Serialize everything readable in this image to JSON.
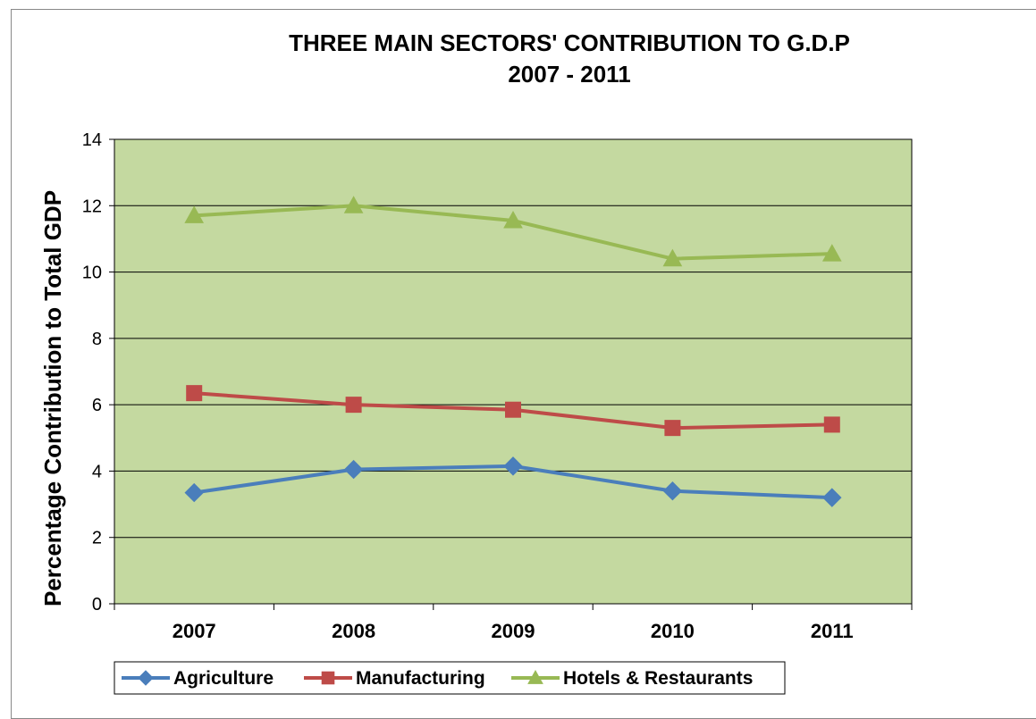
{
  "chart_data": {
    "type": "line",
    "title": "THREE MAIN SECTORS' CONTRIBUTION TO G.D.P",
    "subtitle": "2007 - 2011",
    "xlabel": "",
    "ylabel": "Percentage Contribution to Total GDP",
    "categories": [
      "2007",
      "2008",
      "2009",
      "2010",
      "2011"
    ],
    "ylim": [
      0,
      14
    ],
    "yticks": [
      0,
      2,
      4,
      6,
      8,
      10,
      12,
      14
    ],
    "grid": true,
    "legend_position": "bottom",
    "plot_background": "#c4d9a0",
    "series": [
      {
        "name": "Agriculture",
        "values": [
          3.35,
          4.05,
          4.15,
          3.4,
          3.2
        ],
        "color": "#4a7ebb",
        "marker": "diamond"
      },
      {
        "name": "Manufacturing",
        "values": [
          6.35,
          6.0,
          5.85,
          5.3,
          5.4
        ],
        "color": "#be4b48",
        "marker": "square"
      },
      {
        "name": "Hotels & Restaurants",
        "values": [
          11.7,
          12.0,
          11.55,
          10.4,
          10.55
        ],
        "color": "#98b954",
        "marker": "triangle"
      }
    ]
  }
}
